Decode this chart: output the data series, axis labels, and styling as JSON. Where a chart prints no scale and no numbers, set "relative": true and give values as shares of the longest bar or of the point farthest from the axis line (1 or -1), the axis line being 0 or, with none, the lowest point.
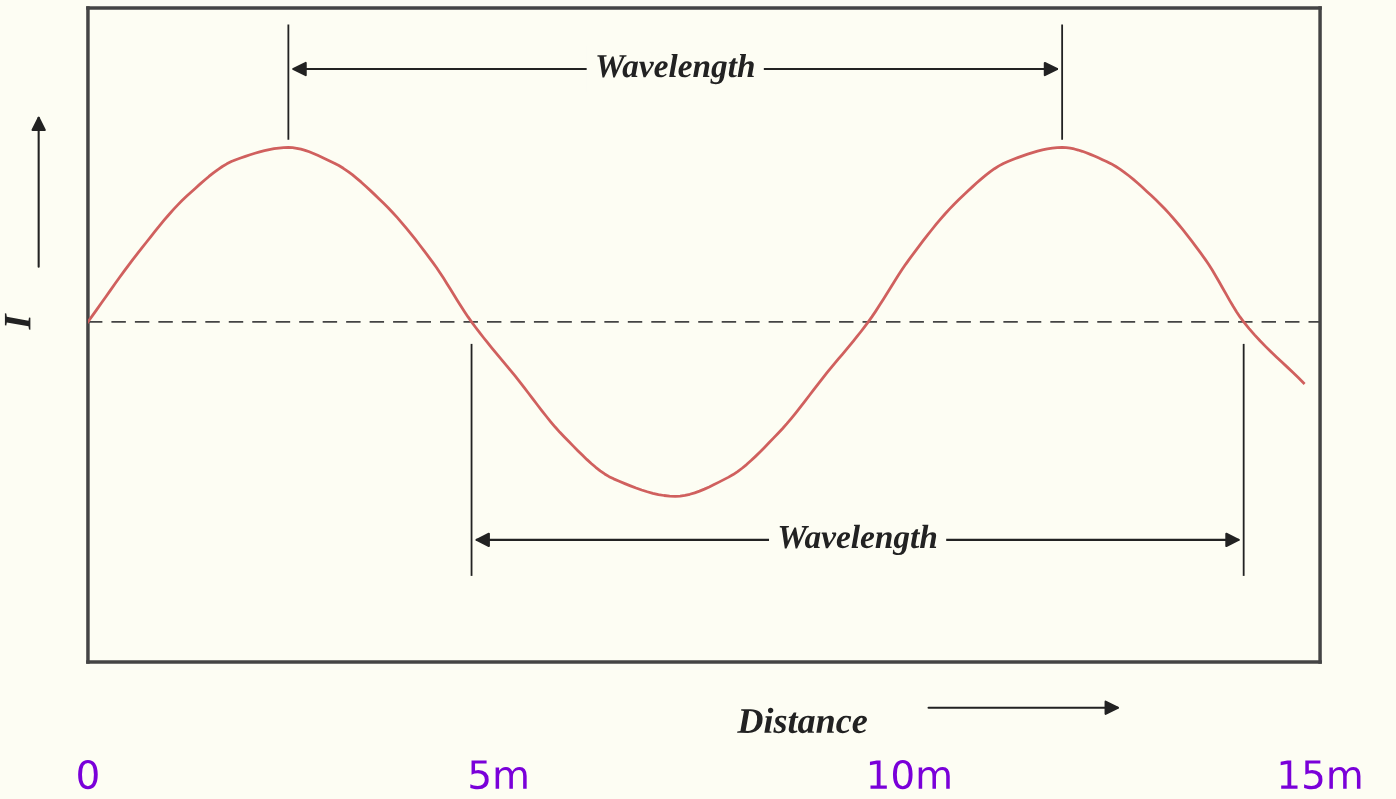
{
  "chart_data": {
    "type": "line",
    "relative": true,
    "xlabel": "Distance",
    "ylabel": "I",
    "x": [
      0,
      0.6,
      1.2,
      1.8,
      2.44,
      3.0,
      3.6,
      4.2,
      4.67,
      5.2,
      5.8,
      6.4,
      7.15,
      7.8,
      8.4,
      9.0,
      9.5,
      10.0,
      10.6,
      11.2,
      11.86,
      12.4,
      13.0,
      13.6,
      14.07,
      14.8
    ],
    "series": [
      {
        "color": "#d0605e",
        "values": [
          0,
          0.39,
          0.72,
          0.93,
          1.0,
          0.91,
          0.68,
          0.34,
          0,
          -0.31,
          -0.66,
          -0.9,
          -1.0,
          -0.89,
          -0.64,
          -0.29,
          0,
          0.36,
          0.7,
          0.92,
          1.0,
          0.92,
          0.7,
          0.36,
          0,
          -0.35
        ]
      }
    ],
    "xlim": [
      0,
      15
    ],
    "xticks": [
      0,
      {
        "value": 5,
        "label": "5m"
      },
      {
        "value": 10,
        "label": "10m"
      },
      {
        "value": 15,
        "label": "15m"
      }
    ],
    "ref_lines": [
      {
        "axis": "y",
        "value": 0,
        "line_style": "dashed",
        "color": "#444444"
      },
      {
        "axis": "x",
        "value": 4.67,
        "color": "#222222"
      },
      {
        "axis": "x",
        "value": 14.07,
        "color": "#222222"
      }
    ],
    "annotations": [
      "Wavelength",
      "Wavelength"
    ],
    "grid": false,
    "legend": false,
    "marker": "none",
    "line_style": "solid"
  }
}
